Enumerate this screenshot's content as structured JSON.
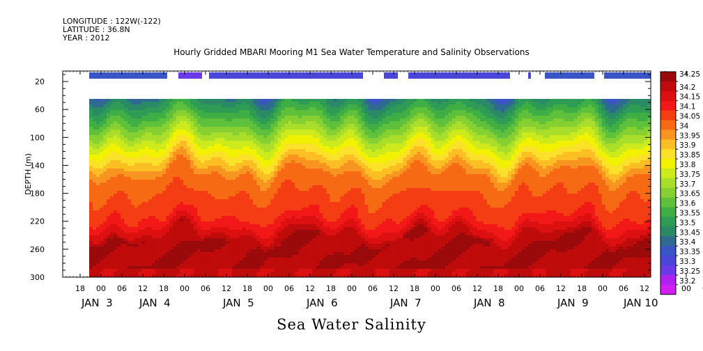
{
  "header": {
    "longitude": "LONGITUDE : 122W(-122)",
    "latitude": "LATITUDE : 36.8N",
    "year": "YEAR : 2012"
  },
  "chart_data": {
    "type": "heatmap",
    "title": "Hourly Gridded MBARI Mooring M1 Sea Water Temperature and Salinity Observations",
    "subtitle": "Sea Water Salinity",
    "ylabel": "DEPTH (m)",
    "y_ticks": [
      20,
      60,
      100,
      140,
      180,
      220,
      260,
      300
    ],
    "ylim": [
      300,
      5
    ],
    "x_hour_ticks": [
      "18",
      "00",
      "06",
      "12",
      "18",
      "00",
      "06",
      "12",
      "18",
      "00",
      "06",
      "12",
      "18",
      "00",
      "06",
      "12",
      "18",
      "00",
      "06",
      "12",
      "18",
      "00",
      "06",
      "12",
      "18",
      "00",
      "06",
      "12",
      "18",
      "00",
      "06",
      "12"
    ],
    "x_day_labels": [
      "JAN  3",
      "JAN  4",
      "JAN  5",
      "JAN  6",
      "JAN  7",
      "JAN  8",
      "JAN  9",
      "JAN 10"
    ],
    "colorbar": {
      "levels": [
        "34.25",
        "34.2",
        "34.15",
        "34.1",
        "34.05",
        "34",
        "33.95",
        "33.9",
        "33.85",
        "33.8",
        "33.75",
        "33.7",
        "33.65",
        "33.6",
        "33.55",
        "33.5",
        "33.45",
        "33.4",
        "33.35",
        "33.3",
        "33.25",
        "33.2"
      ],
      "colors": [
        "#9a0a0a",
        "#bf0b0b",
        "#dc1010",
        "#f21818",
        "#f53d14",
        "#f76a14",
        "#f79520",
        "#fbbf24",
        "#fbe12a",
        "#f2f200",
        "#cdea1c",
        "#a9de2a",
        "#86d032",
        "#5fc03b",
        "#3fae45",
        "#2f9c55",
        "#2a8a66",
        "#2f6a90",
        "#3a55c5",
        "#4a46d8",
        "#6a3ae8",
        "#b020f0",
        "#d21ef5"
      ]
    },
    "grid": false,
    "legend": "right colorbar"
  }
}
